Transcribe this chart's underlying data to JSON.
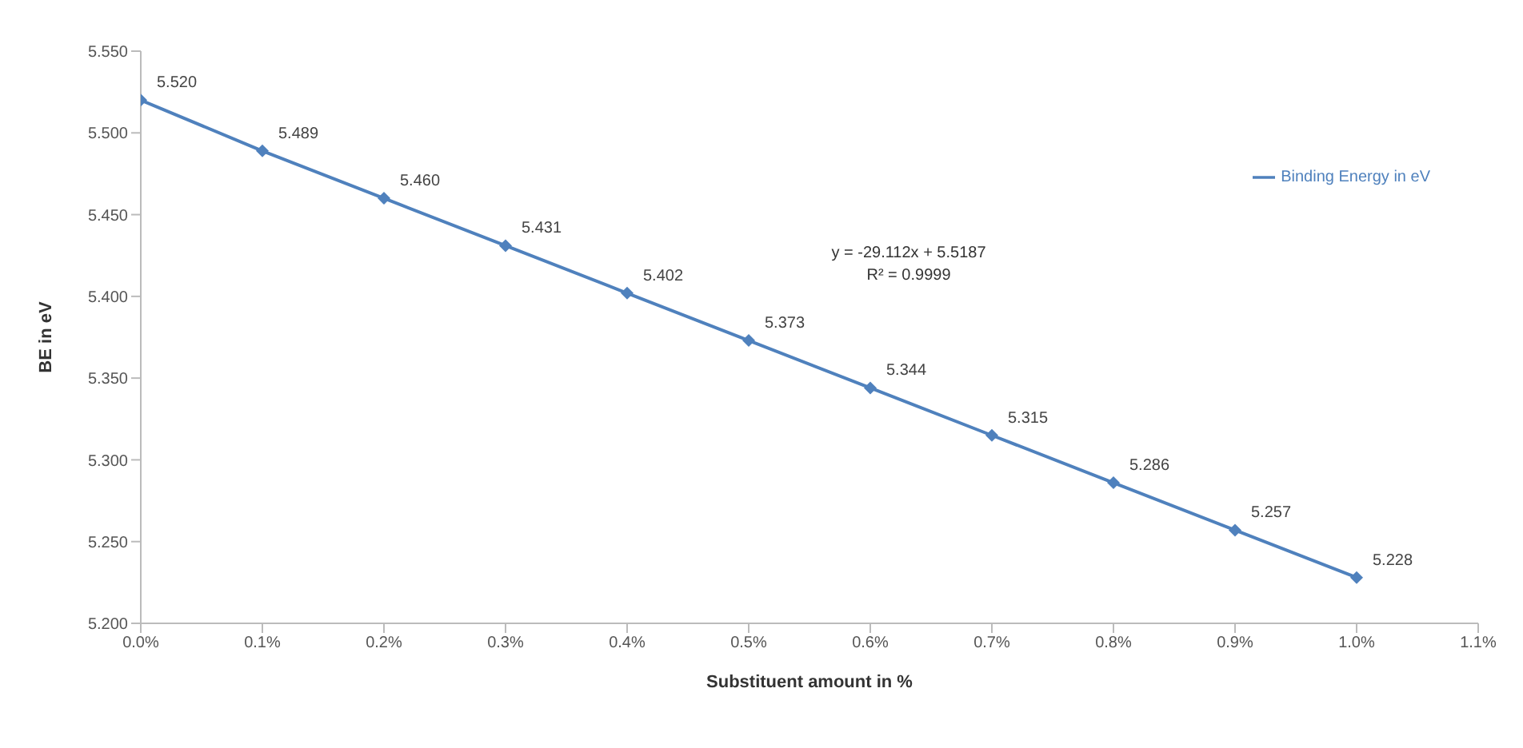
{
  "chart_data": {
    "type": "line",
    "xlabel": "Substituent amount in %",
    "ylabel": "BE in eV",
    "x": [
      0,
      0.1,
      0.2,
      0.3,
      0.4,
      0.5,
      0.6,
      0.7,
      0.8,
      0.9,
      1.0
    ],
    "series": [
      {
        "name": "Binding Energy in eV",
        "color": "#4f81bd",
        "values": [
          5.52,
          5.489,
          5.46,
          5.431,
          5.402,
          5.373,
          5.344,
          5.315,
          5.286,
          5.257,
          5.228
        ],
        "value_labels": [
          "5.520",
          "5.489",
          "5.460",
          "5.431",
          "5.402",
          "5.373",
          "5.344",
          "5.315",
          "5.286",
          "5.257",
          "5.228"
        ]
      }
    ],
    "xlim": [
      0,
      1.1
    ],
    "xticks": [
      {
        "value": 0,
        "label": "0.0%"
      },
      {
        "value": 0.1,
        "label": "0.1%"
      },
      {
        "value": 0.2,
        "label": "0.2%"
      },
      {
        "value": 0.3,
        "label": "0.3%"
      },
      {
        "value": 0.4,
        "label": "0.4%"
      },
      {
        "value": 0.5,
        "label": "0.5%"
      },
      {
        "value": 0.6,
        "label": "0.6%"
      },
      {
        "value": 0.7,
        "label": "0.7%"
      },
      {
        "value": 0.8,
        "label": "0.8%"
      },
      {
        "value": 0.9,
        "label": "0.9%"
      },
      {
        "value": 1.0,
        "label": "1.0%"
      },
      {
        "value": 1.1,
        "label": "1.1%"
      }
    ],
    "ylim": [
      5.2,
      5.55
    ],
    "yticks": [
      {
        "value": 5.2,
        "label": "5.200"
      },
      {
        "value": 5.25,
        "label": "5.250"
      },
      {
        "value": 5.3,
        "label": "5.300"
      },
      {
        "value": 5.35,
        "label": "5.350"
      },
      {
        "value": 5.4,
        "label": "5.400"
      },
      {
        "value": 5.45,
        "label": "5.450"
      },
      {
        "value": 5.5,
        "label": "5.500"
      },
      {
        "value": 5.55,
        "label": "5.550"
      }
    ],
    "annotations": [
      "y = -29.112x + 5.5187",
      "R² = 0.9999"
    ],
    "legend": "right",
    "grid": false,
    "marker": "diamond",
    "line_style": "solid"
  }
}
